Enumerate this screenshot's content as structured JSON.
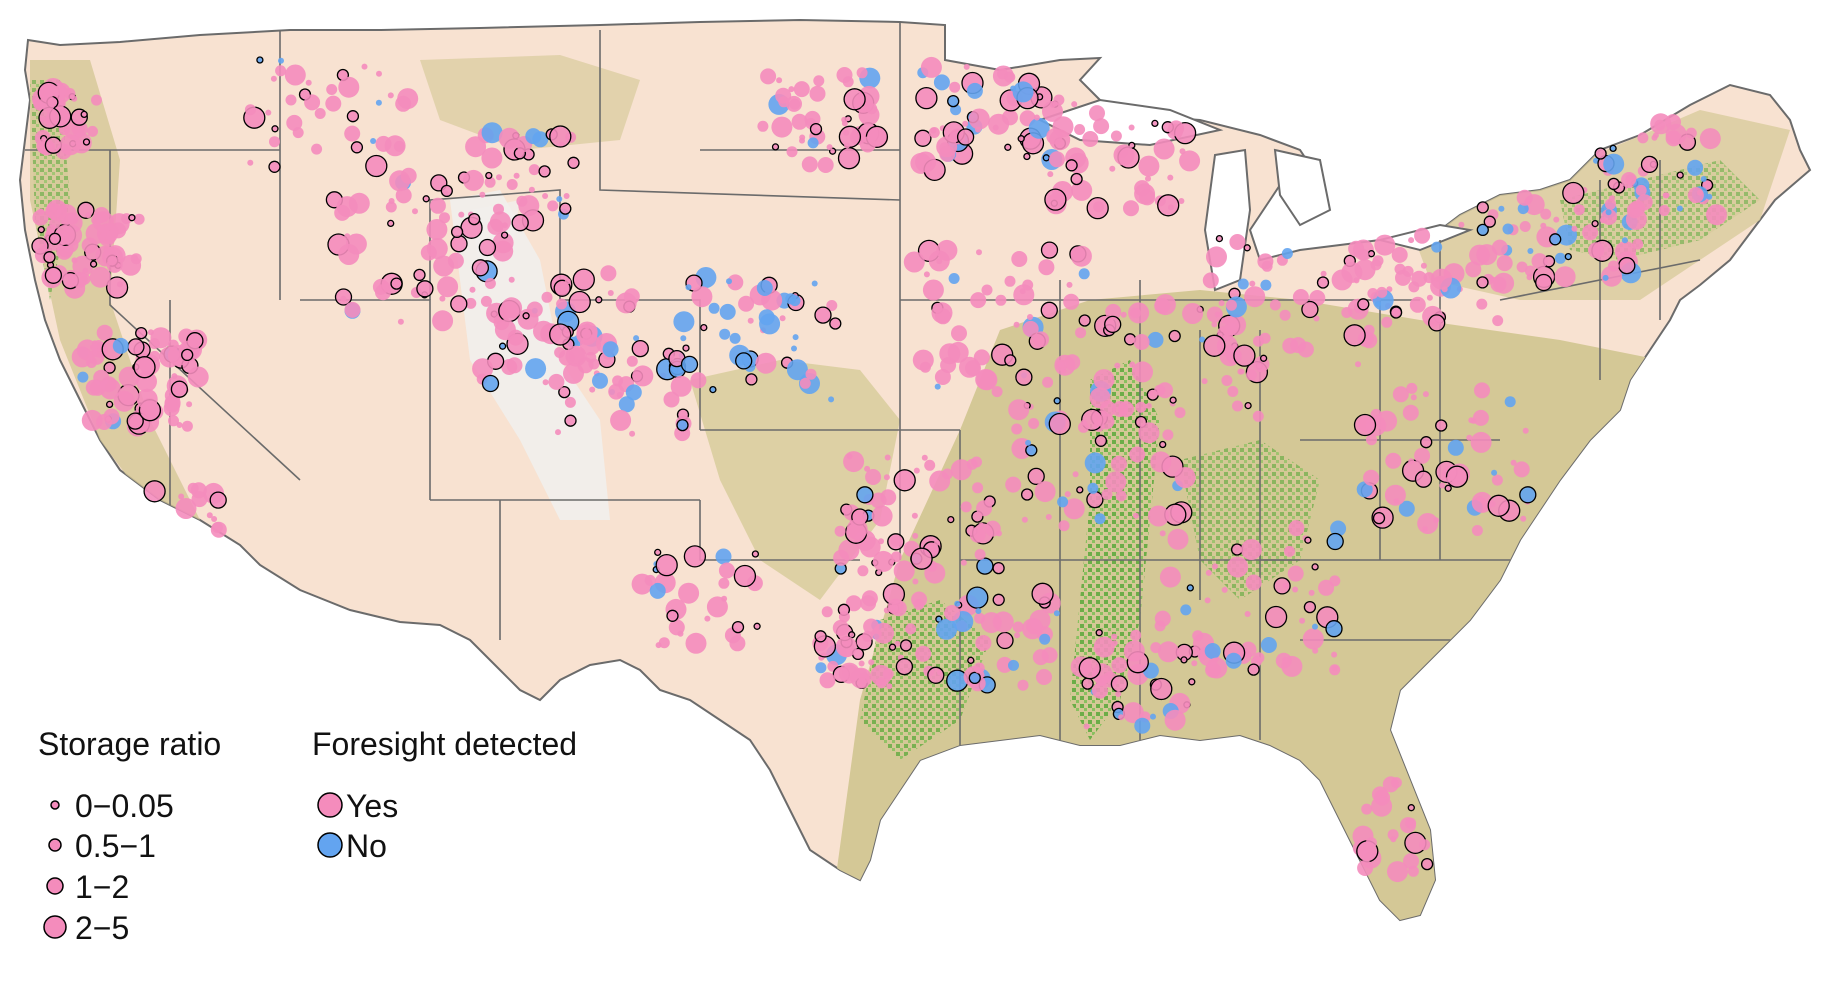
{
  "legend": {
    "size_title": "Storage ratio",
    "size_items": [
      {
        "label": "0−0.05"
      },
      {
        "label": "0.5−1"
      },
      {
        "label": "1−2"
      },
      {
        "label": "2−5"
      }
    ],
    "color_title": "Foresight detected",
    "color_items": [
      {
        "label": "Yes",
        "color": "#f48cbc"
      },
      {
        "label": "No",
        "color": "#63a4f0"
      }
    ]
  },
  "colors": {
    "land_arid": "#f8e2d1",
    "land_olive": "#d4c896",
    "land_wet": "#5aa83a",
    "land_bare": "#f1efec",
    "state_border": "#6b6b6b",
    "yes_fill": "#f48cbc",
    "no_fill": "#63a4f0",
    "marker_outline": "#000000"
  },
  "map": {
    "region": "contiguous-united-states",
    "projection": "albers-conic"
  }
}
